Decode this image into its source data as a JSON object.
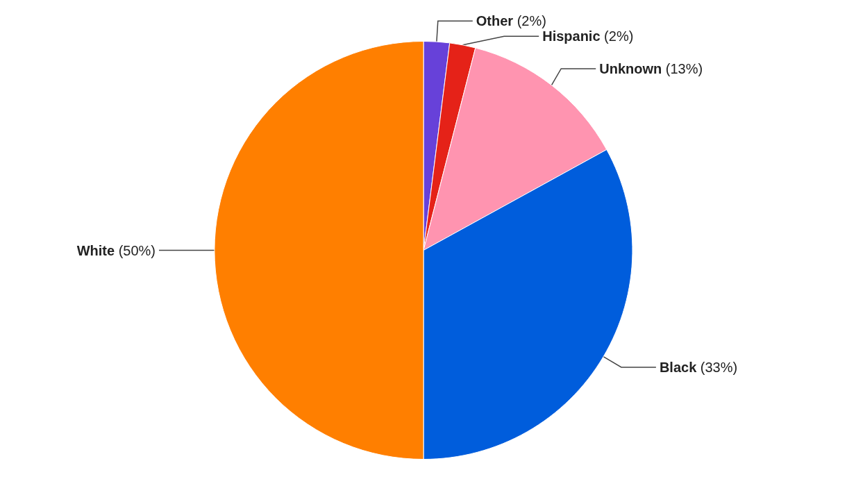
{
  "chart_data": {
    "type": "pie",
    "categories": [
      "Other",
      "Hispanic",
      "Unknown",
      "Black",
      "White"
    ],
    "values": [
      2,
      2,
      13,
      33,
      50
    ],
    "value_labels": [
      "(2%)",
      "(2%)",
      "(13%)",
      "(33%)",
      "(50%)"
    ],
    "colors": [
      "#6741d9",
      "#e52218",
      "#ff94b0",
      "#005ddc",
      "#ff7f00"
    ],
    "legend": false
  }
}
